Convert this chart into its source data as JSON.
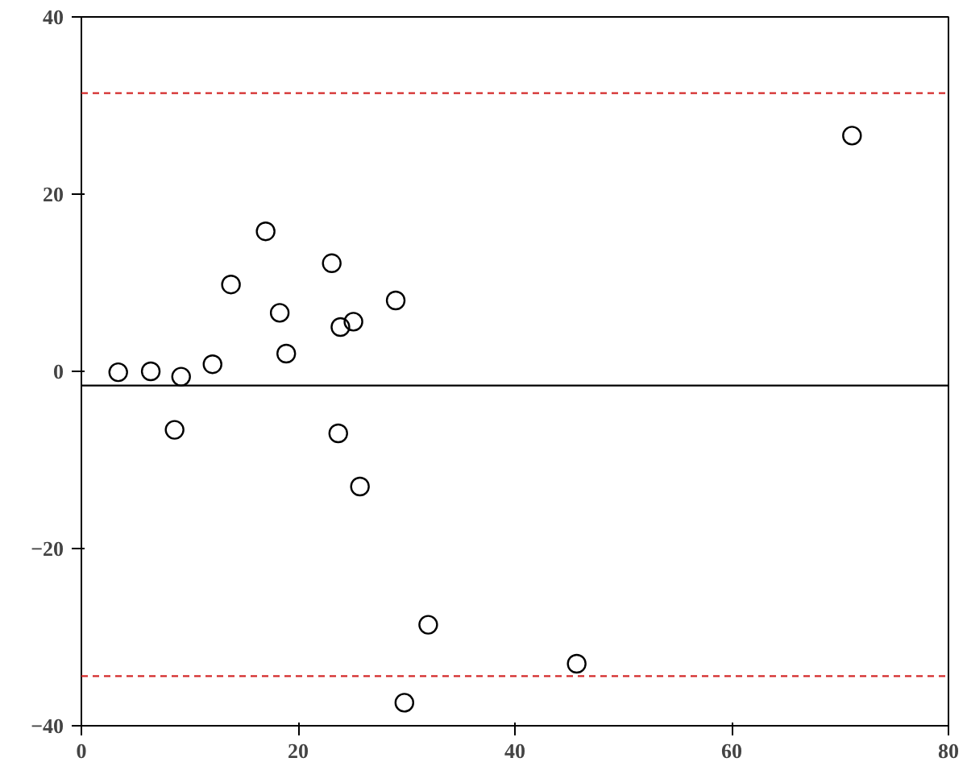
{
  "chart_data": {
    "type": "scatter",
    "marker": "circle",
    "grid": false,
    "xlim": [
      0,
      80
    ],
    "ylim": [
      -40,
      40
    ],
    "xticks": [
      0,
      20,
      40,
      60,
      80
    ],
    "yticks": [
      -40,
      -20,
      0,
      20,
      40
    ],
    "series": [
      {
        "color": "#000000",
        "x": [
          3.4,
          6.4,
          9.2,
          8.6,
          12.1,
          13.8,
          17.0,
          18.3,
          18.9,
          23.1,
          23.9,
          23.7,
          25.1,
          25.7,
          29.0,
          29.8,
          32.0,
          45.7,
          71.1
        ],
        "values": [
          -0.1,
          0,
          -0.6,
          -6.6,
          0.8,
          9.8,
          15.8,
          6.6,
          2,
          12.2,
          5,
          -7,
          5.6,
          -13,
          8,
          -37.4,
          -28.6,
          -33,
          26.6
        ]
      }
    ],
    "ref_lines": [
      {
        "axis": "y",
        "value": 31.4,
        "color": "#d42a2a",
        "line_style": "dashed"
      },
      {
        "axis": "y",
        "value": -1.6,
        "color": "#000000",
        "line_style": "solid"
      },
      {
        "axis": "y",
        "value": -34.4,
        "color": "#d42a2a",
        "line_style": "dashed"
      }
    ]
  }
}
